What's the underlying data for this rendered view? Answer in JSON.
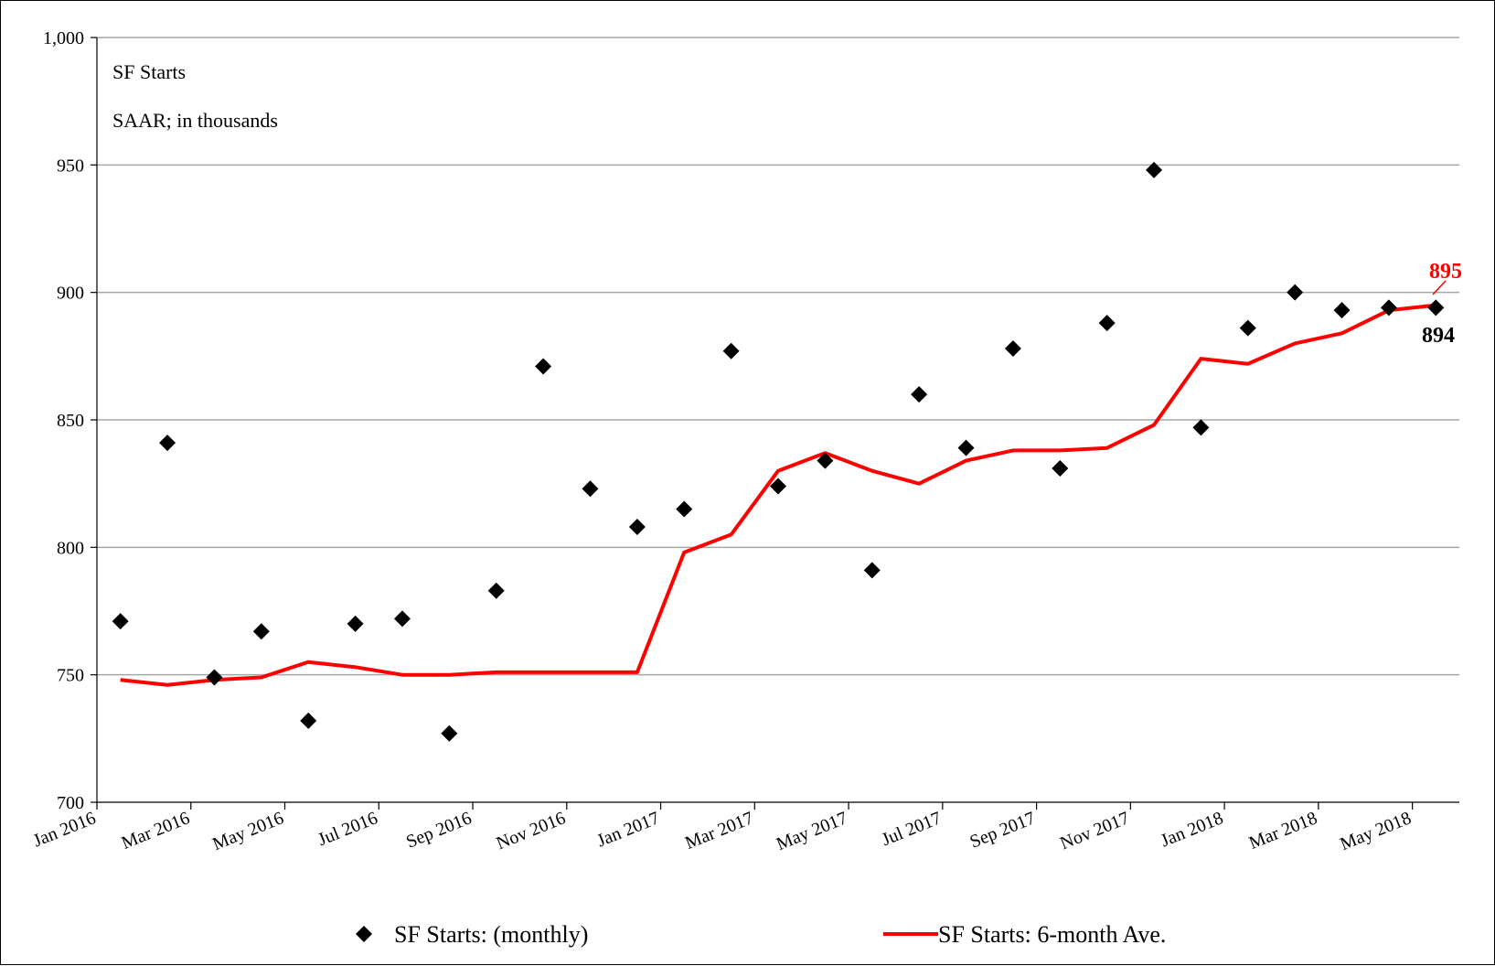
{
  "chart_data": {
    "type": "line",
    "title": "",
    "annotations": [
      "SF Starts",
      "SAAR; in thousands"
    ],
    "xlabel": "",
    "ylabel": "",
    "ylim": [
      700,
      1000
    ],
    "yticks": [
      700,
      750,
      800,
      850,
      900,
      950,
      1000
    ],
    "ytick_labels": [
      "700",
      "750",
      "800",
      "850",
      "900",
      "950",
      "1,000"
    ],
    "xtick_labels": [
      "Jan 2016",
      "Mar 2016",
      "May 2016",
      "Jul 2016",
      "Sep 2016",
      "Nov 2016",
      "Jan 2017",
      "Mar 2017",
      "May 2017",
      "Jul 2017",
      "Sep 2017",
      "Nov 2017",
      "Jan 2018",
      "Mar 2018",
      "May 2018"
    ],
    "x": [
      "Jan 2016",
      "Feb 2016",
      "Mar 2016",
      "Apr 2016",
      "May 2016",
      "Jun 2016",
      "Jul 2016",
      "Aug 2016",
      "Sep 2016",
      "Oct 2016",
      "Nov 2016",
      "Dec 2016",
      "Jan 2017",
      "Feb 2017",
      "Mar 2017",
      "Apr 2017",
      "May 2017",
      "Jun 2017",
      "Jul 2017",
      "Aug 2017",
      "Sep 2017",
      "Oct 2017",
      "Nov 2017",
      "Dec 2017",
      "Jan 2018",
      "Feb 2018",
      "Mar 2018",
      "Apr 2018",
      "May 2018"
    ],
    "series": [
      {
        "name": "SF Starts: (monthly)",
        "style": "marker",
        "color": "#000000",
        "values": [
          771,
          841,
          749,
          767,
          732,
          770,
          772,
          727,
          783,
          871,
          823,
          808,
          815,
          877,
          824,
          834,
          791,
          860,
          839,
          878,
          831,
          888,
          948,
          847,
          886,
          900,
          893,
          894,
          894
        ]
      },
      {
        "name": "SF Starts: 6-month Ave.",
        "style": "line",
        "color": "#ff0000",
        "values": [
          748,
          746,
          748,
          749,
          755,
          753,
          750,
          750,
          751,
          751,
          751,
          751,
          798,
          805,
          830,
          837,
          830,
          825,
          834,
          838,
          838,
          839,
          848,
          874,
          872,
          880,
          884,
          893,
          895
        ]
      }
    ],
    "end_labels": {
      "average": "895",
      "monthly": "894"
    },
    "legend": [
      "SF Starts: (monthly)",
      "SF Starts: 6-month Ave."
    ],
    "legend_position": "bottom",
    "grid": true
  }
}
